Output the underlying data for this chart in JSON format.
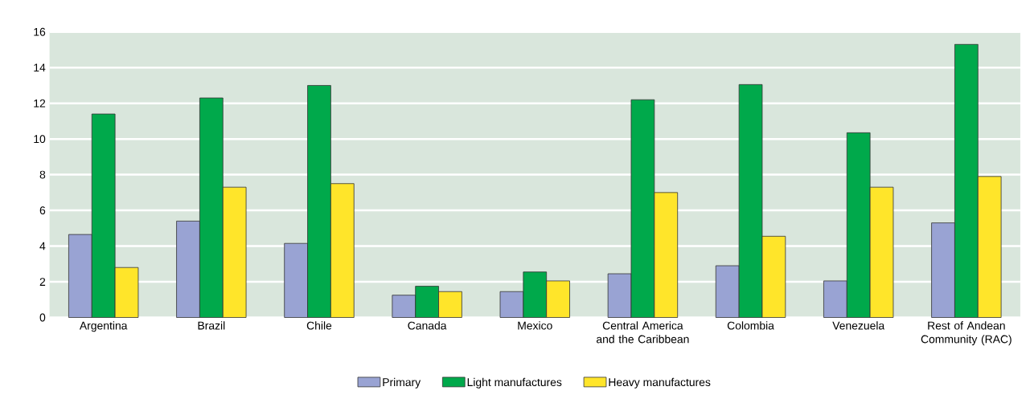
{
  "chart_data": {
    "type": "bar",
    "categories": [
      "Argentina",
      "Brazil",
      "Chile",
      "Canada",
      "Mexico",
      "Central America and the Caribbean",
      "Colombia",
      "Venezuela",
      "Rest of Andean Community (RAC)"
    ],
    "series": [
      {
        "name": "Primary",
        "color": "#99a3d3",
        "values": [
          4.65,
          5.4,
          4.15,
          1.25,
          1.45,
          2.45,
          2.9,
          2.05,
          5.3
        ]
      },
      {
        "name": "Light manufactures",
        "color": "#00a94b",
        "values": [
          11.4,
          12.3,
          13.0,
          1.75,
          2.55,
          12.2,
          13.05,
          10.35,
          15.3
        ]
      },
      {
        "name": "Heavy manufactures",
        "color": "#ffe52a",
        "values": [
          2.8,
          7.3,
          7.5,
          1.45,
          2.05,
          7.0,
          4.55,
          7.3,
          7.9
        ]
      }
    ],
    "ylim": [
      0,
      16
    ],
    "yticks": [
      0,
      2,
      4,
      6,
      8,
      10,
      12,
      14,
      16
    ],
    "grid": "y",
    "legend": "bottom"
  }
}
